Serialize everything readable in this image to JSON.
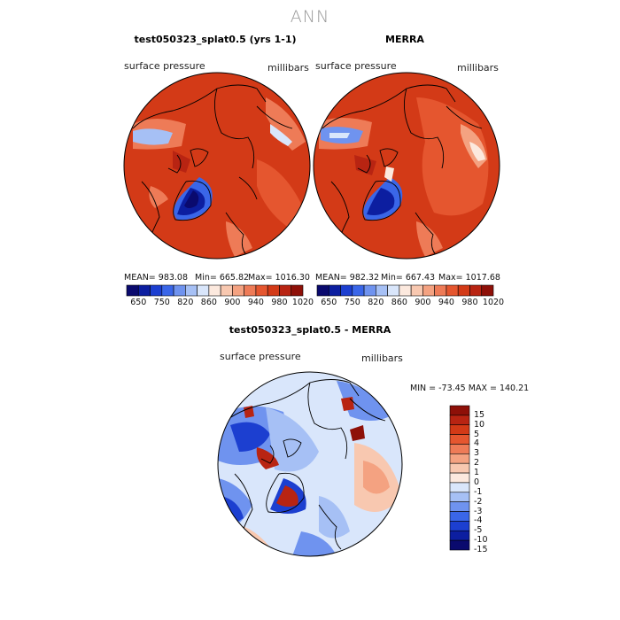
{
  "main_title": "ANN",
  "panels": [
    {
      "title": "test050323_splat0.5 (yrs 1-1)",
      "variable": "surface pressure",
      "units": "millibars",
      "stats": {
        "mean": "MEAN= 983.08",
        "min": "Min= 665.82",
        "max": "Max= 1016.30"
      }
    },
    {
      "title": "MERRA",
      "variable": "surface pressure",
      "units": "millibars",
      "stats": {
        "mean": "MEAN= 982.32",
        "min": "Min= 667.43",
        "max": "Max= 1017.68"
      }
    }
  ],
  "top_colorbar": {
    "colors": [
      "#0a0a6e",
      "#0c1ea0",
      "#1c3fd0",
      "#3a66e8",
      "#6f93ef",
      "#a6c0f5",
      "#d9e6fb",
      "#fce9de",
      "#f8c8b0",
      "#f4a281",
      "#ee7b57",
      "#e5562f",
      "#d33a17",
      "#b82412",
      "#8e1008"
    ],
    "tick_labels": [
      "650",
      "750",
      "820",
      "860",
      "900",
      "940",
      "980",
      "1020"
    ]
  },
  "diff_panel": {
    "title": "test050323_splat0.5 - MERRA",
    "variable": "surface pressure",
    "units": "millibars",
    "minmax": "MIN = -73.45  MAX = 140.21"
  },
  "diff_colorbar": {
    "colors": [
      "#8e1008",
      "#b82412",
      "#d33a17",
      "#e5562f",
      "#ee7b57",
      "#f4a281",
      "#f8c8b0",
      "#fce9de",
      "#d9e6fb",
      "#a6c0f5",
      "#6f93ef",
      "#3a66e8",
      "#1c3fd0",
      "#0c1ea0",
      "#0a0a6e"
    ],
    "tick_labels": [
      "15",
      "10",
      "5",
      "4",
      "3",
      "2",
      "1",
      "0",
      "-1",
      "-2",
      "-3",
      "-4",
      "-5",
      "-10",
      "-15"
    ]
  }
}
